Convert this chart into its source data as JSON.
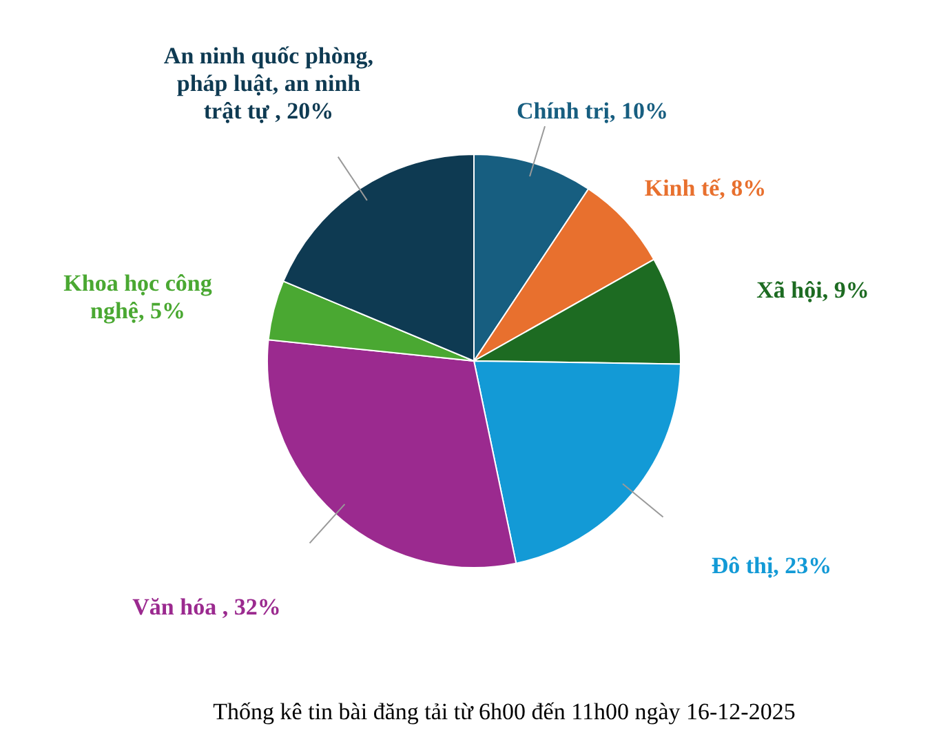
{
  "chart_data": {
    "type": "pie",
    "title": "Thống kê tin bài đăng tải từ 6h00 đến 11h00 ngày 16-12-2025",
    "categories": [
      "Chính trị",
      "Kinh tế",
      "Xã hội",
      "Đô thị",
      "Văn hóa ",
      "Khoa học công nghệ",
      "An ninh quốc phòng, pháp luật, an ninh trật tự "
    ],
    "values": [
      10,
      8,
      9,
      23,
      32,
      5,
      20
    ],
    "value_labels": [
      "10%",
      "8%",
      "9%",
      "23%",
      "32%",
      "5%",
      "20%"
    ],
    "colors": [
      "#175e80",
      "#e8702e",
      "#1d6b22",
      "#139ad6",
      "#9b2a8f",
      "#4aa832",
      "#0e3a52"
    ]
  }
}
